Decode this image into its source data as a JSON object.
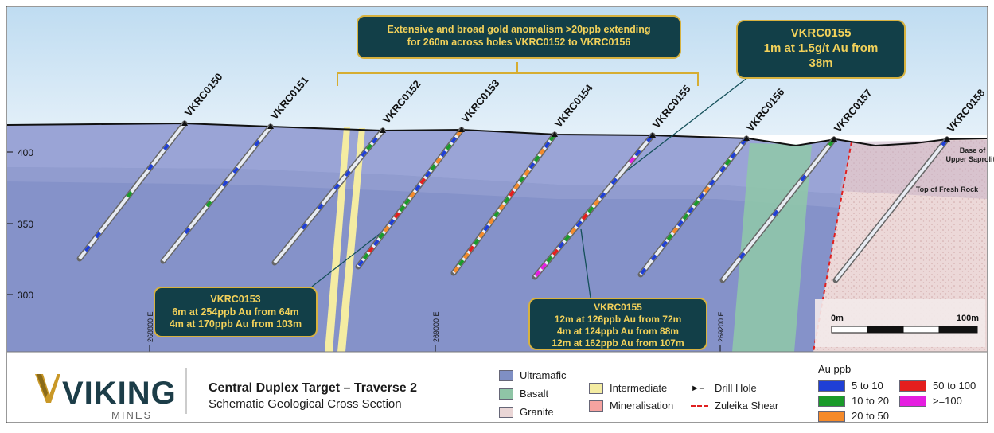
{
  "hole_labels": [
    "VKRC0150",
    "VKRC0151",
    "VKRC0152",
    "VKRC0153",
    "VKRC0154",
    "VKRC0155",
    "VKRC0156",
    "VKRC0157",
    "VKRC0158"
  ],
  "elevation_ticks": [
    "400",
    "350",
    "300"
  ],
  "easting_ticks": [
    "268800 E",
    "269000 E",
    "269200 E"
  ],
  "surface_labels": {
    "saprolite": "Base of Upper Saprolite",
    "fresh_rock": "Top of Fresh Rock"
  },
  "scale_bar": {
    "start": "0m",
    "end": "100m"
  },
  "top_callout": {
    "line1": "Extensive and broad gold anomalism >20ppb extending",
    "line2": "for 260m across holes VKRC0152 to VKRC0156"
  },
  "highlight_callout": {
    "hole": "VKRC0155",
    "line1": "1m at 1.5g/t Au from",
    "line2": "38m"
  },
  "callout_0153": {
    "hole": "VKRC0153",
    "line1": "6m at 254ppb Au from 64m",
    "line2": "4m at 170ppb Au from 103m"
  },
  "callout_0155": {
    "hole": "VKRC0155",
    "line1": "12m at 126ppb Au from 72m",
    "line2": "4m at 124ppb Au from 88m",
    "line3": "12m at 162ppb Au from 107m"
  },
  "logo": {
    "name": "VIKING",
    "sub": "MINES"
  },
  "title": {
    "line1": "Central Duplex Target – Traverse 2",
    "line2": "Schematic Geological Cross Section"
  },
  "lithology_legend": [
    {
      "label": "Ultramafic",
      "color": "#7f8fc4"
    },
    {
      "label": "Basalt",
      "color": "#8fc5a6"
    },
    {
      "label": "Granite",
      "color": "#ead6d6"
    },
    {
      "label": "Intermediate",
      "color": "#f4eca2"
    },
    {
      "label": "Mineralisation",
      "color": "#f6a3a0"
    }
  ],
  "symbol_legend": {
    "drill_hole": "Drill Hole",
    "shear": "Zuleika Shear"
  },
  "au_legend": {
    "title": "Au ppb",
    "items": [
      {
        "label": "5 to 10",
        "color": "#1f3fd6"
      },
      {
        "label": "10 to 20",
        "color": "#1a9a2a"
      },
      {
        "label": "20 to 50",
        "color": "#f58a2a"
      },
      {
        "label": "50 to 100",
        "color": "#e41e1e"
      },
      {
        "label": ">=100",
        "color": "#e51ee0"
      }
    ]
  }
}
